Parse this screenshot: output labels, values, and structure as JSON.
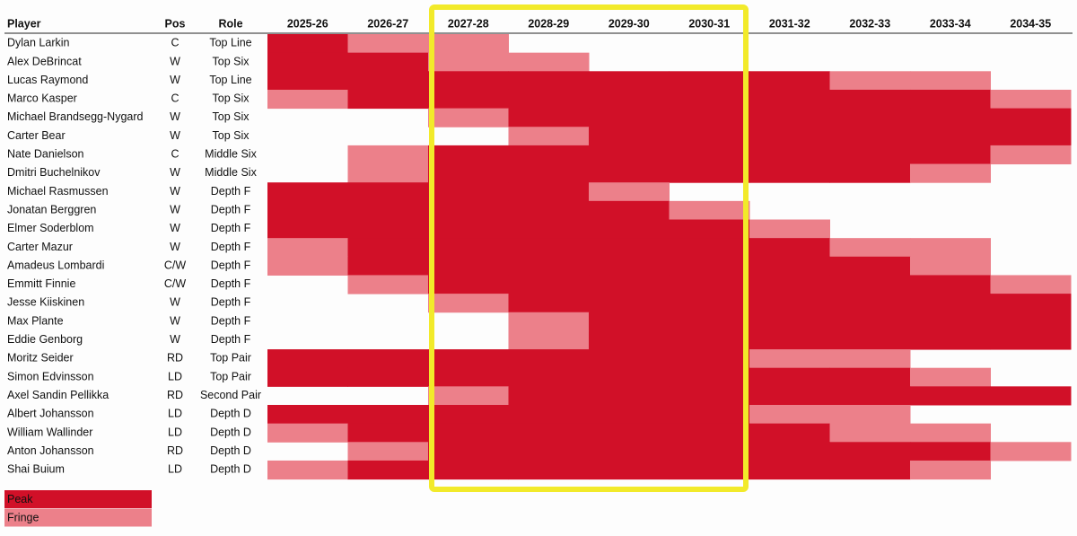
{
  "table": {
    "headers": [
      "Player",
      "Pos",
      "Role"
    ],
    "seasons": [
      "2025-26",
      "2026-27",
      "2027-28",
      "2028-29",
      "2029-30",
      "2030-31",
      "2031-32",
      "2032-33",
      "2033-34",
      "2034-35"
    ],
    "legend": [
      {
        "label": "Peak",
        "color": "#d11028"
      },
      {
        "label": "Fringe",
        "color": "#ec808a"
      }
    ],
    "rows": [
      {
        "player": "Dylan Larkin",
        "pos": "C",
        "role": "Top Line",
        "cells": [
          0,
          1,
          1,
          null,
          null,
          null,
          null,
          null,
          null,
          null
        ]
      },
      {
        "player": "Alex DeBrincat",
        "pos": "W",
        "role": "Top Six",
        "cells": [
          0,
          0,
          1,
          1,
          null,
          null,
          null,
          null,
          null,
          null
        ]
      },
      {
        "player": "Lucas Raymond",
        "pos": "W",
        "role": "Top Line",
        "cells": [
          0,
          0,
          0,
          0,
          0,
          0,
          0,
          1,
          1,
          null
        ]
      },
      {
        "player": "Marco Kasper",
        "pos": "C",
        "role": "Top Six",
        "cells": [
          1,
          0,
          0,
          0,
          0,
          0,
          0,
          0,
          0,
          1
        ]
      },
      {
        "player": "Michael Brandsegg-Nygard",
        "pos": "W",
        "role": "Top Six",
        "cells": [
          null,
          null,
          1,
          0,
          0,
          0,
          0,
          0,
          0,
          0
        ]
      },
      {
        "player": "Carter Bear",
        "pos": "W",
        "role": "Top Six",
        "cells": [
          null,
          null,
          null,
          1,
          0,
          0,
          0,
          0,
          0,
          0
        ]
      },
      {
        "player": "Nate Danielson",
        "pos": "C",
        "role": "Middle Six",
        "cells": [
          null,
          1,
          0,
          0,
          0,
          0,
          0,
          0,
          0,
          1
        ]
      },
      {
        "player": "Dmitri Buchelnikov",
        "pos": "W",
        "role": "Middle Six",
        "cells": [
          null,
          1,
          0,
          0,
          0,
          0,
          0,
          0,
          1,
          null
        ]
      },
      {
        "player": "Michael Rasmussen",
        "pos": "W",
        "role": "Depth F",
        "cells": [
          0,
          0,
          0,
          0,
          1,
          null,
          null,
          null,
          null,
          null
        ]
      },
      {
        "player": "Jonatan Berggren",
        "pos": "W",
        "role": "Depth F",
        "cells": [
          0,
          0,
          0,
          0,
          0,
          1,
          null,
          null,
          null,
          null
        ]
      },
      {
        "player": "Elmer Soderblom",
        "pos": "W",
        "role": "Depth F",
        "cells": [
          0,
          0,
          0,
          0,
          0,
          0,
          1,
          null,
          null,
          null
        ]
      },
      {
        "player": "Carter Mazur",
        "pos": "W",
        "role": "Depth F",
        "cells": [
          1,
          0,
          0,
          0,
          0,
          0,
          0,
          1,
          1,
          null
        ]
      },
      {
        "player": "Amadeus Lombardi",
        "pos": "C/W",
        "role": "Depth F",
        "cells": [
          1,
          0,
          0,
          0,
          0,
          0,
          0,
          0,
          1,
          null
        ]
      },
      {
        "player": "Emmitt Finnie",
        "pos": "C/W",
        "role": "Depth F",
        "cells": [
          null,
          1,
          0,
          0,
          0,
          0,
          0,
          0,
          0,
          1
        ]
      },
      {
        "player": "Jesse Kiiskinen",
        "pos": "W",
        "role": "Depth F",
        "cells": [
          null,
          null,
          1,
          0,
          0,
          0,
          0,
          0,
          0,
          0
        ]
      },
      {
        "player": "Max Plante",
        "pos": "W",
        "role": "Depth F",
        "cells": [
          null,
          null,
          null,
          1,
          0,
          0,
          0,
          0,
          0,
          0
        ]
      },
      {
        "player": "Eddie Genborg",
        "pos": "W",
        "role": "Depth F",
        "cells": [
          null,
          null,
          null,
          1,
          0,
          0,
          0,
          0,
          0,
          0
        ]
      },
      {
        "player": "Moritz Seider",
        "pos": "RD",
        "role": "Top Pair",
        "cells": [
          0,
          0,
          0,
          0,
          0,
          0,
          1,
          1,
          null,
          null
        ]
      },
      {
        "player": "Simon Edvinsson",
        "pos": "LD",
        "role": "Top Pair",
        "cells": [
          0,
          0,
          0,
          0,
          0,
          0,
          0,
          0,
          1,
          null
        ]
      },
      {
        "player": "Axel Sandin Pellikka",
        "pos": "RD",
        "role": "Second Pair",
        "cells": [
          null,
          null,
          1,
          0,
          0,
          0,
          0,
          0,
          0,
          0
        ]
      },
      {
        "player": "Albert Johansson",
        "pos": "LD",
        "role": "Depth D",
        "cells": [
          0,
          0,
          0,
          0,
          0,
          0,
          1,
          1,
          null,
          null
        ]
      },
      {
        "player": "William Wallinder",
        "pos": "LD",
        "role": "Depth D",
        "cells": [
          1,
          0,
          0,
          0,
          0,
          0,
          0,
          1,
          1,
          null
        ]
      },
      {
        "player": "Anton Johansson",
        "pos": "RD",
        "role": "Depth D",
        "cells": [
          null,
          1,
          0,
          0,
          0,
          0,
          0,
          0,
          0,
          1
        ]
      },
      {
        "player": "Shai Buium",
        "pos": "LD",
        "role": "Depth D",
        "cells": [
          1,
          0,
          0,
          0,
          0,
          0,
          0,
          0,
          1,
          null
        ]
      }
    ]
  }
}
